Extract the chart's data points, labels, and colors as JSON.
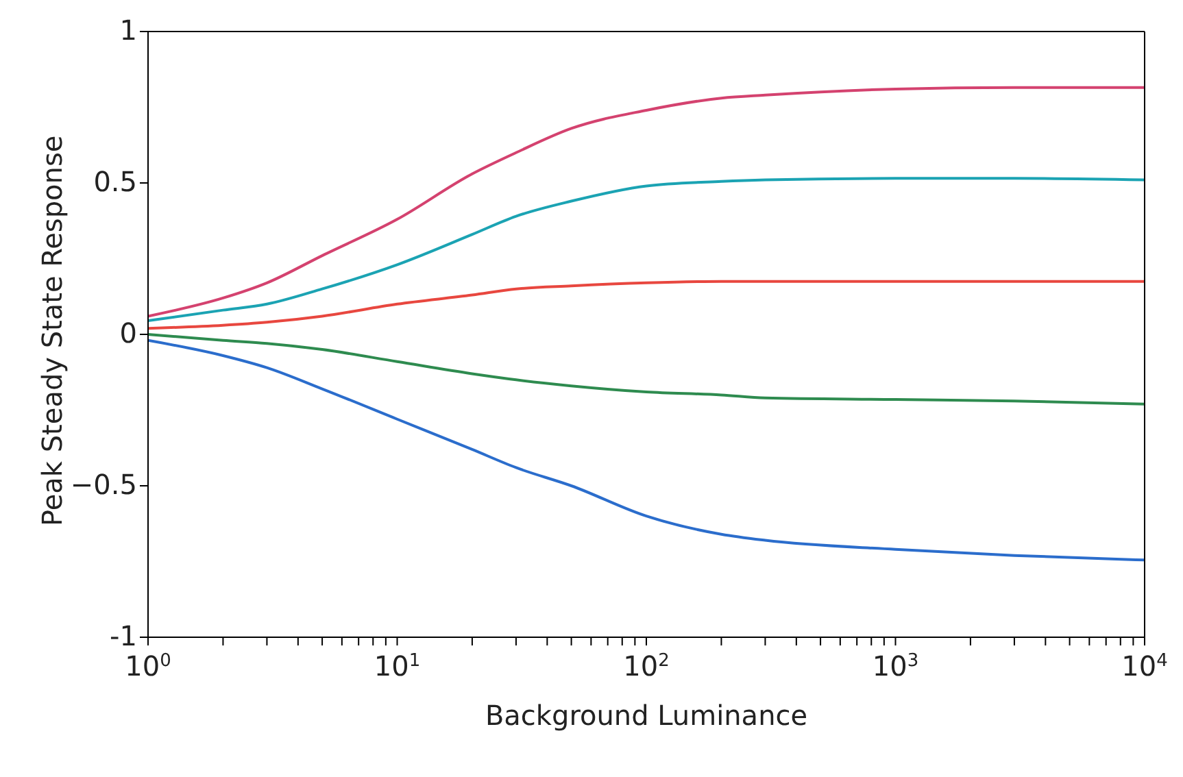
{
  "chart_data": {
    "type": "line",
    "xlabel": "Background Luminance",
    "ylabel": "Peak Steady State Response",
    "log": "x",
    "xlim": [
      1,
      10000
    ],
    "ylim": [
      -1,
      1
    ],
    "xticks": [
      {
        "value": 1,
        "label": "10$^{0}$"
      },
      {
        "value": 2,
        "label": null
      },
      {
        "value": 3,
        "label": null
      },
      {
        "value": 4,
        "label": null
      },
      {
        "value": 5,
        "label": null
      },
      {
        "value": 6,
        "label": null
      },
      {
        "value": 7,
        "label": null
      },
      {
        "value": 8,
        "label": null
      },
      {
        "value": 9,
        "label": null
      },
      {
        "value": 10,
        "label": "10$^{1}$"
      },
      {
        "value": 20,
        "label": null
      },
      {
        "value": 30,
        "label": null
      },
      {
        "value": 40,
        "label": null
      },
      {
        "value": 50,
        "label": null
      },
      {
        "value": 60,
        "label": null
      },
      {
        "value": 70,
        "label": null
      },
      {
        "value": 80,
        "label": null
      },
      {
        "value": 90,
        "label": null
      },
      {
        "value": 100,
        "label": "10$^{2}$"
      },
      {
        "value": 200,
        "label": null
      },
      {
        "value": 300,
        "label": null
      },
      {
        "value": 400,
        "label": null
      },
      {
        "value": 500,
        "label": null
      },
      {
        "value": 600,
        "label": null
      },
      {
        "value": 700,
        "label": null
      },
      {
        "value": 800,
        "label": null
      },
      {
        "value": 900,
        "label": null
      },
      {
        "value": 1000,
        "label": "10$^{3}$"
      },
      {
        "value": 2000,
        "label": null
      },
      {
        "value": 3000,
        "label": null
      },
      {
        "value": 4000,
        "label": null
      },
      {
        "value": 5000,
        "label": null
      },
      {
        "value": 6000,
        "label": null
      },
      {
        "value": 7000,
        "label": null
      },
      {
        "value": 8000,
        "label": null
      },
      {
        "value": 9000,
        "label": null
      },
      {
        "value": 10000,
        "label": "10$^{4}$"
      }
    ],
    "yticks": [
      -1,
      {
        "value": -0.5,
        "label": "−0.5"
      },
      0,
      0.5,
      1
    ],
    "grid": false,
    "legend": false,
    "marker": "none",
    "line_style": "solid",
    "x": [
      1,
      2,
      3,
      5,
      10,
      20,
      30,
      50,
      100,
      200,
      300,
      1000,
      3000,
      10000
    ],
    "series": [
      {
        "color": "#d4426f",
        "values": [
          0.06,
          0.12,
          0.17,
          0.26,
          0.38,
          0.53,
          0.6,
          0.68,
          0.74,
          0.78,
          0.79,
          0.81,
          0.815,
          0.815
        ]
      },
      {
        "color": "#1ba3b3",
        "values": [
          0.045,
          0.08,
          0.1,
          0.15,
          0.23,
          0.33,
          0.39,
          0.44,
          0.49,
          0.505,
          0.51,
          0.515,
          0.515,
          0.51
        ]
      },
      {
        "color": "#e8473f",
        "values": [
          0.02,
          0.03,
          0.04,
          0.06,
          0.1,
          0.13,
          0.15,
          0.16,
          0.17,
          0.175,
          0.175,
          0.175,
          0.175,
          0.175
        ]
      },
      {
        "color": "#2e8b4f",
        "values": [
          0,
          -0.02,
          -0.03,
          -0.05,
          -0.09,
          -0.13,
          -0.15,
          -0.17,
          -0.19,
          -0.2,
          -0.21,
          -0.215,
          -0.22,
          -0.23
        ]
      },
      {
        "color": "#2b6dcc",
        "values": [
          -0.02,
          -0.07,
          -0.11,
          -0.18,
          -0.28,
          -0.38,
          -0.44,
          -0.5,
          -0.6,
          -0.66,
          -0.68,
          -0.71,
          -0.73,
          -0.745
        ]
      }
    ]
  }
}
